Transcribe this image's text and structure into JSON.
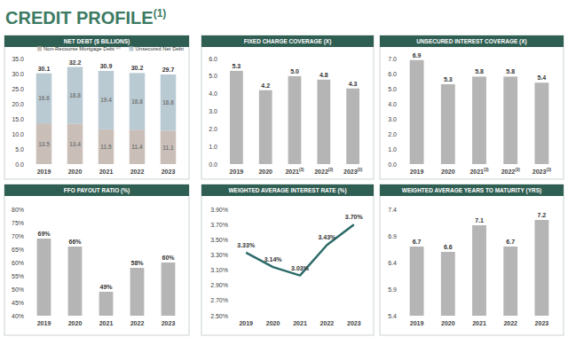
{
  "title": "CREDIT PROFILE",
  "title_note": "(1)",
  "chart_data": [
    {
      "type": "bar",
      "title": "NET DEBT ($ BILLIONS)",
      "stacked": true,
      "data_labels": true,
      "legend": "top",
      "grid": false,
      "categories": [
        "2019",
        "2020",
        "2021",
        "2022",
        "2023"
      ],
      "series": [
        {
          "name": "Non-Recourse Mortgage Debt (2)",
          "color": "#c9bfb8",
          "values": [
            13.5,
            13.4,
            11.5,
            11.4,
            11.1
          ]
        },
        {
          "name": "Unsecured Net Debt",
          "color": "#b9cad3",
          "values": [
            16.6,
            18.8,
            19.4,
            18.8,
            18.6
          ]
        }
      ],
      "totals": [
        30.1,
        32.2,
        30.9,
        30.2,
        29.7
      ],
      "ylim": [
        0,
        35
      ],
      "yticks": [
        {
          "value": 0,
          "label": "0.0"
        },
        {
          "value": 5,
          "label": "5.0"
        },
        {
          "value": 10,
          "label": "10.0"
        },
        {
          "value": 15,
          "label": "15.0"
        },
        {
          "value": 20,
          "label": "20.0"
        },
        {
          "value": 25,
          "label": "25.0"
        },
        {
          "value": 30,
          "label": "30.0"
        },
        {
          "value": 35,
          "label": "35.0"
        }
      ]
    },
    {
      "type": "bar",
      "title": "FIXED CHARGE COVERAGE (X)",
      "data_labels": true,
      "grid": false,
      "color": "#b5b5b5",
      "categories": [
        "2019",
        "2020",
        "2021(3)",
        "2022(3)",
        "2023(3)"
      ],
      "values": [
        5.3,
        4.2,
        5.0,
        4.8,
        4.3
      ],
      "value_labels": [
        "5.3",
        "4.2",
        "5.0",
        "4.8",
        "4.3"
      ],
      "ylim": [
        0,
        6
      ],
      "yticks": [
        {
          "value": 0,
          "label": "0.0"
        },
        {
          "value": 1,
          "label": "1.0"
        },
        {
          "value": 2,
          "label": "2.0"
        },
        {
          "value": 3,
          "label": "3.0"
        },
        {
          "value": 4,
          "label": "4.0"
        },
        {
          "value": 5,
          "label": "5.0"
        },
        {
          "value": 6,
          "label": "6.0"
        }
      ]
    },
    {
      "type": "bar",
      "title": "UNSECURED INTEREST COVERAGE (X)",
      "data_labels": true,
      "grid": false,
      "color": "#b5b5b5",
      "categories": [
        "2019",
        "2020",
        "2021(3)",
        "2022(3)",
        "2023(3)"
      ],
      "values": [
        6.9,
        5.3,
        5.8,
        5.8,
        5.4
      ],
      "ylim": [
        0,
        7
      ],
      "yticks": [
        {
          "value": 0,
          "label": "0.0"
        },
        {
          "value": 1,
          "label": "1.0"
        },
        {
          "value": 2,
          "label": "2.0"
        },
        {
          "value": 3,
          "label": "3.0"
        },
        {
          "value": 4,
          "label": "4.0"
        },
        {
          "value": 5,
          "label": "5.0"
        },
        {
          "value": 6,
          "label": "6.0"
        },
        {
          "value": 7,
          "label": "7.0"
        }
      ]
    },
    {
      "type": "bar",
      "title": "FFO PAYOUT RATIO (%)",
      "data_labels": true,
      "grid": false,
      "color": "#b5b5b5",
      "categories": [
        "2019",
        "2020",
        "2021",
        "2022",
        "2023"
      ],
      "values": [
        69,
        66,
        49,
        58,
        60
      ],
      "value_labels": [
        "69%",
        "66%",
        "49%",
        "58%",
        "60%"
      ],
      "ylim": [
        40,
        80
      ],
      "yticks": [
        {
          "value": 40,
          "label": "40%"
        },
        {
          "value": 45,
          "label": "45%"
        },
        {
          "value": 50,
          "label": "50%"
        },
        {
          "value": 55,
          "label": "55%"
        },
        {
          "value": 60,
          "label": "60%"
        },
        {
          "value": 65,
          "label": "65%"
        },
        {
          "value": 70,
          "label": "70%"
        },
        {
          "value": 75,
          "label": "75%"
        },
        {
          "value": 80,
          "label": "80%"
        }
      ]
    },
    {
      "type": "line",
      "title": "WEIGHTED AVERAGE INTEREST RATE (%)",
      "data_labels": true,
      "grid": false,
      "color": "#2c6b6a",
      "categories": [
        "2019",
        "2020",
        "2021",
        "2022",
        "2023"
      ],
      "values": [
        3.33,
        3.14,
        3.03,
        3.43,
        3.7
      ],
      "value_labels": [
        "3.33%",
        "3.14%",
        "3.03%",
        "3.43%",
        "3.70%"
      ],
      "ylim": [
        2.5,
        3.9
      ],
      "yticks": [
        {
          "value": 2.5,
          "label": "2.50%"
        },
        {
          "value": 2.7,
          "label": "2.70%"
        },
        {
          "value": 2.9,
          "label": "2.90%"
        },
        {
          "value": 3.1,
          "label": "3.10%"
        },
        {
          "value": 3.3,
          "label": "3.30%"
        },
        {
          "value": 3.5,
          "label": "3.50%"
        },
        {
          "value": 3.7,
          "label": "3.70%"
        },
        {
          "value": 3.9,
          "label": "3.90%"
        }
      ]
    },
    {
      "type": "bar",
      "title": "WEIGHTED AVERAGE YEARS TO MATURITY (YRS)",
      "data_labels": true,
      "grid": false,
      "color": "#b5b5b5",
      "categories": [
        "2019",
        "2020",
        "2021",
        "2022",
        "2023"
      ],
      "values": [
        6.7,
        6.6,
        7.1,
        6.7,
        7.2
      ],
      "ylim": [
        5.4,
        7.4
      ],
      "yticks": [
        5.4,
        5.9,
        6.4,
        6.9,
        7.4
      ]
    }
  ]
}
